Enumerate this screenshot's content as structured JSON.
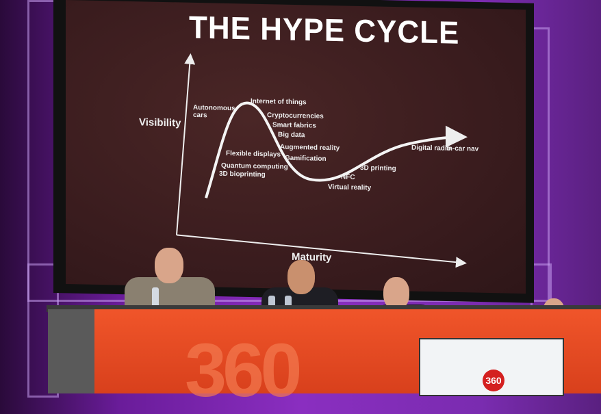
{
  "slide": {
    "title": "THE HYPE CYCLE",
    "y_axis_label": "Visibility",
    "x_axis_label": "Maturity",
    "labels": [
      "Autonomous cars",
      "Internet of things",
      "Cryptocurrencies",
      "Smart fabrics",
      "Big data",
      "Augmented reality",
      "Gamification",
      "Flexible displays",
      "Quantum computing",
      "3D bioprinting",
      "NFC",
      "Virtual reality",
      "3D printing",
      "Digital radio",
      "In-car nav"
    ]
  },
  "branding": {
    "logo": "360",
    "accent": "#e84a22"
  }
}
